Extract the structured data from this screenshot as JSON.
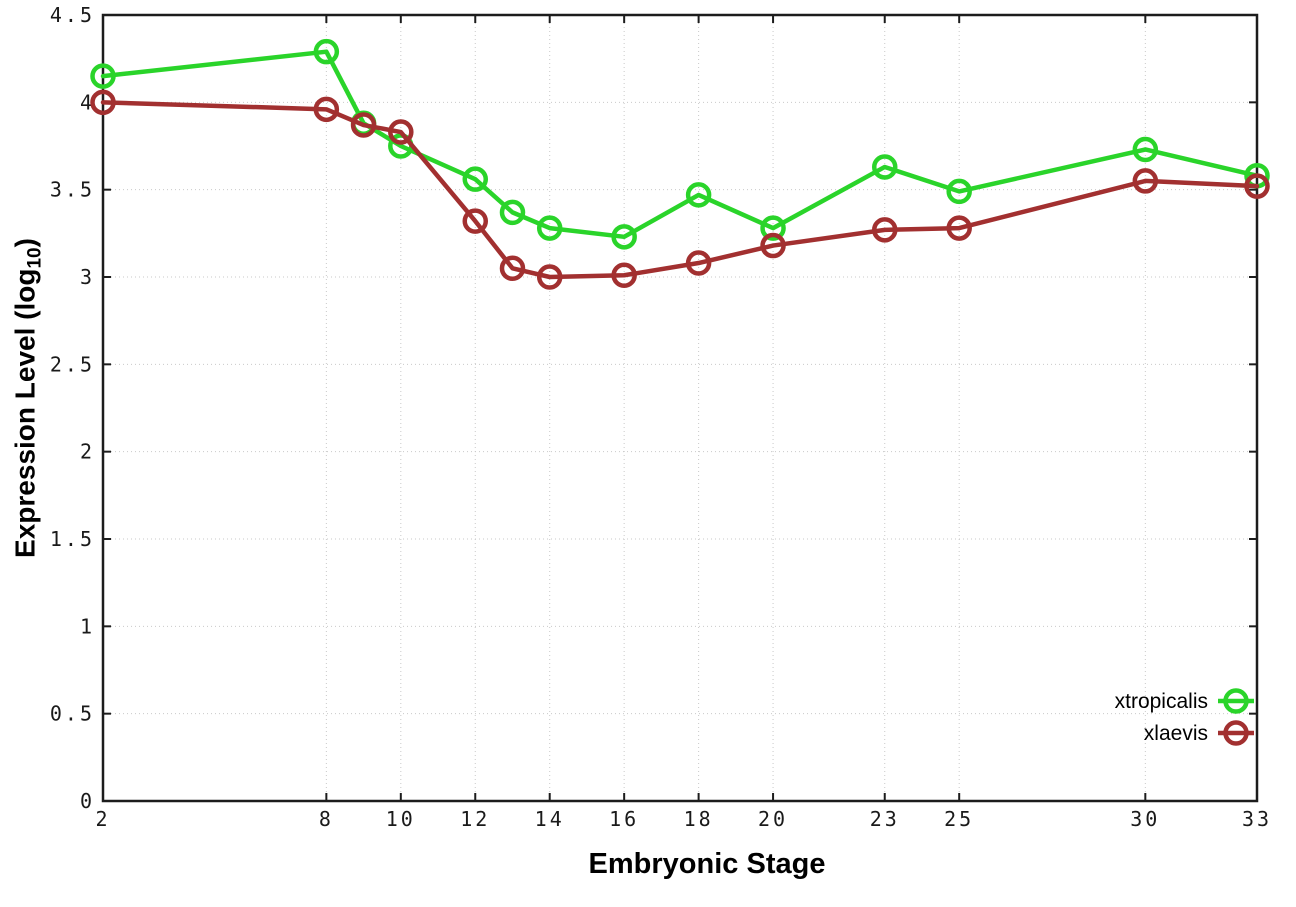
{
  "figure": {
    "background": "#ffffff",
    "border_color": "#1c1c1c",
    "grid_color": "#c9c9c9",
    "ylabel_main": "Expression Level (log",
    "ylabel_sub": "10",
    "ylabel_close": ")"
  },
  "chart_data": {
    "type": "line",
    "title": "",
    "xlabel": "Embryonic Stage",
    "ylabel": "Expression Level (log10)",
    "x": [
      2,
      8,
      9,
      10,
      12,
      13,
      14,
      16,
      18,
      20,
      23,
      25,
      30,
      33
    ],
    "series": [
      {
        "name": "xtropicalis",
        "color": "#2ad42a",
        "values": [
          4.15,
          4.29,
          3.88,
          3.75,
          3.56,
          3.37,
          3.28,
          3.23,
          3.47,
          3.28,
          3.63,
          3.49,
          3.73,
          3.58
        ]
      },
      {
        "name": "xlaevis",
        "color": "#a23030",
        "values": [
          4.0,
          3.96,
          3.87,
          3.83,
          3.32,
          3.05,
          3.0,
          3.01,
          3.08,
          3.18,
          3.27,
          3.28,
          3.55,
          3.52
        ]
      }
    ],
    "xlim": [
      2,
      33
    ],
    "ylim": [
      0,
      4.5
    ],
    "xticks": [
      2,
      8,
      10,
      12,
      14,
      16,
      18,
      20,
      23,
      25,
      30,
      33
    ],
    "ytick_step": 0.5,
    "ytick_labels": [
      "0",
      "0.5",
      "1",
      "1.5",
      "2",
      "2.5",
      "3",
      "3.5",
      "4",
      "4.5"
    ],
    "grid": true,
    "marker": "open-circle",
    "legend_position": "bottom-right",
    "legend_entries": [
      "xtropicalis",
      "xlaevis"
    ]
  }
}
